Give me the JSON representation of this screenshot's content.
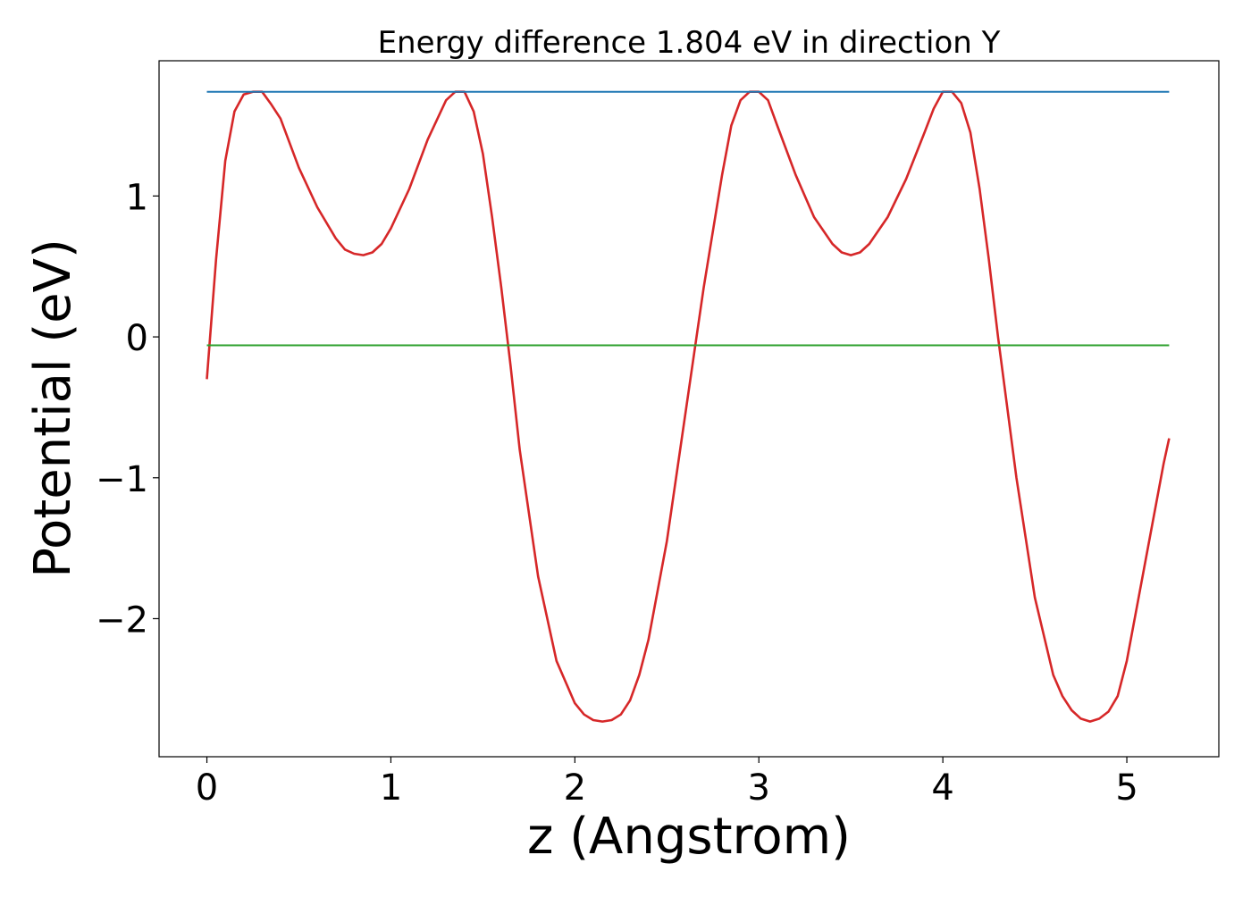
{
  "chart_data": {
    "type": "line",
    "title": "Energy difference 1.804 eV in direction Y",
    "xlabel": "z (Angstrom)",
    "ylabel": "Potential (eV)",
    "xlim": [
      -0.26,
      5.5
    ],
    "ylim": [
      -2.98,
      1.96
    ],
    "x_ticks": [
      0,
      1,
      2,
      3,
      4,
      5
    ],
    "x_tick_labels": [
      "0",
      "1",
      "2",
      "3",
      "4",
      "5"
    ],
    "y_ticks": [
      1,
      0,
      -1,
      -2
    ],
    "y_tick_labels": [
      "1",
      "0",
      "−1",
      "−2"
    ],
    "grid": false,
    "legend": "none",
    "series": [
      {
        "color": "#d62728",
        "x": [
          0.0,
          0.05,
          0.1,
          0.15,
          0.2,
          0.25,
          0.3,
          0.35,
          0.4,
          0.5,
          0.6,
          0.7,
          0.75,
          0.8,
          0.85,
          0.9,
          0.95,
          1.0,
          1.1,
          1.2,
          1.3,
          1.35,
          1.4,
          1.45,
          1.5,
          1.55,
          1.6,
          1.65,
          1.7,
          1.8,
          1.9,
          2.0,
          2.05,
          2.1,
          2.15,
          2.2,
          2.25,
          2.3,
          2.35,
          2.4,
          2.5,
          2.6,
          2.7,
          2.8,
          2.85,
          2.9,
          2.95,
          3.0,
          3.05,
          3.1,
          3.2,
          3.3,
          3.4,
          3.45,
          3.5,
          3.55,
          3.6,
          3.7,
          3.8,
          3.9,
          3.95,
          4.0,
          4.05,
          4.1,
          4.15,
          4.2,
          4.25,
          4.3,
          4.4,
          4.5,
          4.6,
          4.65,
          4.7,
          4.75,
          4.8,
          4.85,
          4.9,
          4.95,
          5.0,
          5.1,
          5.2,
          5.23
        ],
        "y": [
          -0.3,
          0.55,
          1.25,
          1.6,
          1.72,
          1.74,
          1.74,
          1.65,
          1.55,
          1.2,
          0.92,
          0.7,
          0.62,
          0.59,
          0.58,
          0.6,
          0.66,
          0.77,
          1.05,
          1.4,
          1.68,
          1.74,
          1.74,
          1.6,
          1.3,
          0.85,
          0.35,
          -0.2,
          -0.8,
          -1.7,
          -2.3,
          -2.6,
          -2.68,
          -2.72,
          -2.73,
          -2.72,
          -2.68,
          -2.58,
          -2.4,
          -2.15,
          -1.45,
          -0.55,
          0.35,
          1.15,
          1.5,
          1.68,
          1.74,
          1.74,
          1.68,
          1.5,
          1.15,
          0.85,
          0.66,
          0.6,
          0.58,
          0.6,
          0.66,
          0.85,
          1.12,
          1.45,
          1.62,
          1.74,
          1.74,
          1.66,
          1.45,
          1.05,
          0.55,
          0.0,
          -1.0,
          -1.85,
          -2.4,
          -2.55,
          -2.65,
          -2.71,
          -2.73,
          -2.71,
          -2.66,
          -2.55,
          -2.3,
          -1.6,
          -0.9,
          -0.72
        ]
      },
      {
        "color": "#1f77b4",
        "x": [
          0.0,
          5.23
        ],
        "y": [
          1.74,
          1.74
        ]
      },
      {
        "color": "#2ca02c",
        "x": [
          0.0,
          5.23
        ],
        "y": [
          -0.06,
          -0.06
        ]
      }
    ]
  }
}
